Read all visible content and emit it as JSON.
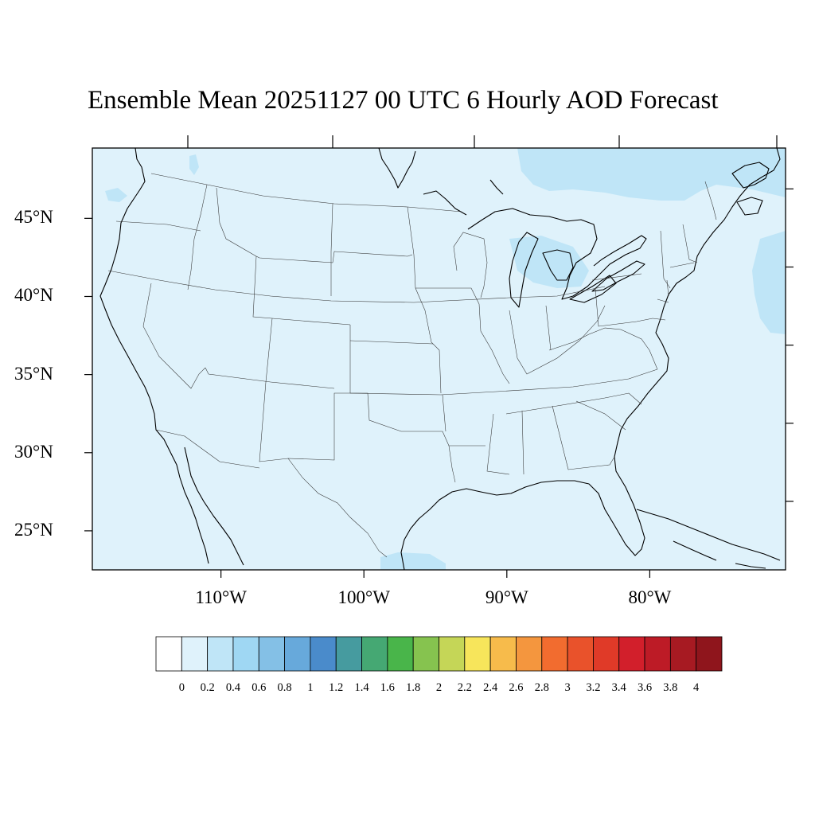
{
  "title": "Ensemble Mean 20251127 00 UTC 6 Hourly AOD Forecast",
  "map": {
    "lat_range": [
      22.5,
      49.5
    ],
    "lon_range": [
      -119,
      -70.5
    ],
    "lat_ticks": [
      {
        "value": 45,
        "label": "45°N"
      },
      {
        "value": 40,
        "label": "40°N"
      },
      {
        "value": 35,
        "label": "35°N"
      },
      {
        "value": 30,
        "label": "30°N"
      },
      {
        "value": 25,
        "label": "25°N"
      }
    ],
    "lon_ticks": [
      {
        "value": -110,
        "label": "110°W"
      },
      {
        "value": -100,
        "label": "100°W"
      },
      {
        "value": -90,
        "label": "90°W"
      },
      {
        "value": -80,
        "label": "80°W"
      }
    ],
    "background_color": "#dff2fb",
    "feature_color": "#bfe5f7"
  },
  "colorbar": {
    "levels": [
      "0",
      "0.2",
      "0.4",
      "0.6",
      "0.8",
      "1",
      "1.2",
      "1.4",
      "1.6",
      "1.8",
      "2",
      "2.2",
      "2.4",
      "2.6",
      "2.8",
      "3",
      "3.2",
      "3.4",
      "3.6",
      "3.8",
      "4"
    ],
    "colors": [
      "#ffffff",
      "#dff2fb",
      "#bfe5f7",
      "#9fd7f3",
      "#84c0e6",
      "#67a9db",
      "#4a8bcb",
      "#469b9f",
      "#45a873",
      "#49b54a",
      "#86c34f",
      "#c5d657",
      "#f7e55b",
      "#f7bb4b",
      "#f4963e",
      "#f26c2f",
      "#e9522b",
      "#e03a28",
      "#d21f2b",
      "#bd1b26",
      "#a71a22",
      "#8f151c"
    ]
  }
}
